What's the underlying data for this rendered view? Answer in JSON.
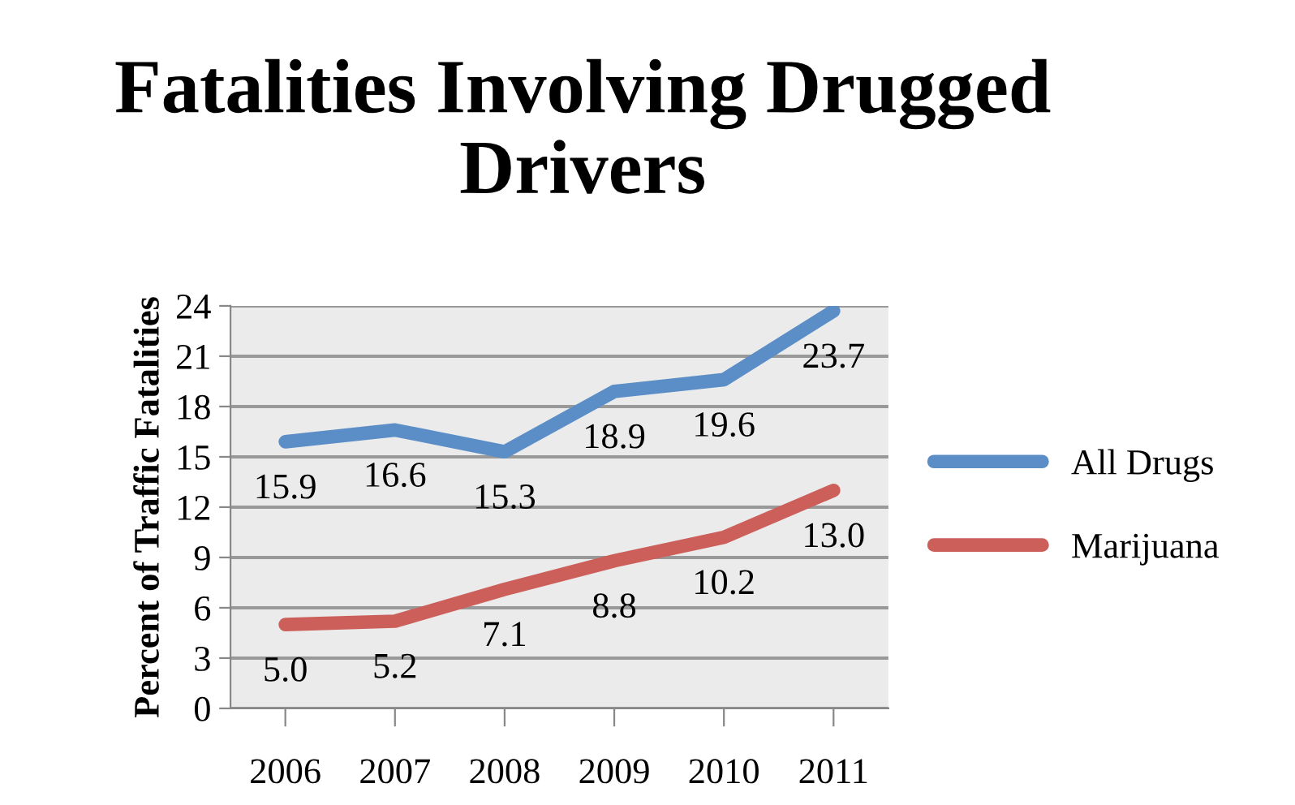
{
  "chart_data": {
    "type": "line",
    "title": "Fatalities Involving Drugged Drivers",
    "ylabel": "Percent of Traffic Fatalities",
    "categories": [
      "2006",
      "2007",
      "2008",
      "2009",
      "2010",
      "2011"
    ],
    "series": [
      {
        "name": "All Drugs",
        "color": "#5b8ec7",
        "values": [
          15.9,
          16.6,
          15.3,
          18.9,
          19.6,
          23.7
        ]
      },
      {
        "name": "Marijuana",
        "color": "#cc5f5a",
        "values": [
          5.0,
          5.2,
          7.1,
          8.8,
          10.2,
          13.0
        ]
      }
    ],
    "value_labels": [
      [
        "15.9",
        "16.6",
        "15.3",
        "18.9",
        "19.6",
        "23.7"
      ],
      [
        "5.0",
        "5.2",
        "7.1",
        "8.8",
        "10.2",
        "13.0"
      ]
    ],
    "ylim": [
      0,
      24
    ],
    "yticks": [
      0,
      3,
      6,
      9,
      12,
      15,
      18,
      21,
      24
    ],
    "grid": "y",
    "legend": "right",
    "marker": "none",
    "line_style": "solid"
  }
}
